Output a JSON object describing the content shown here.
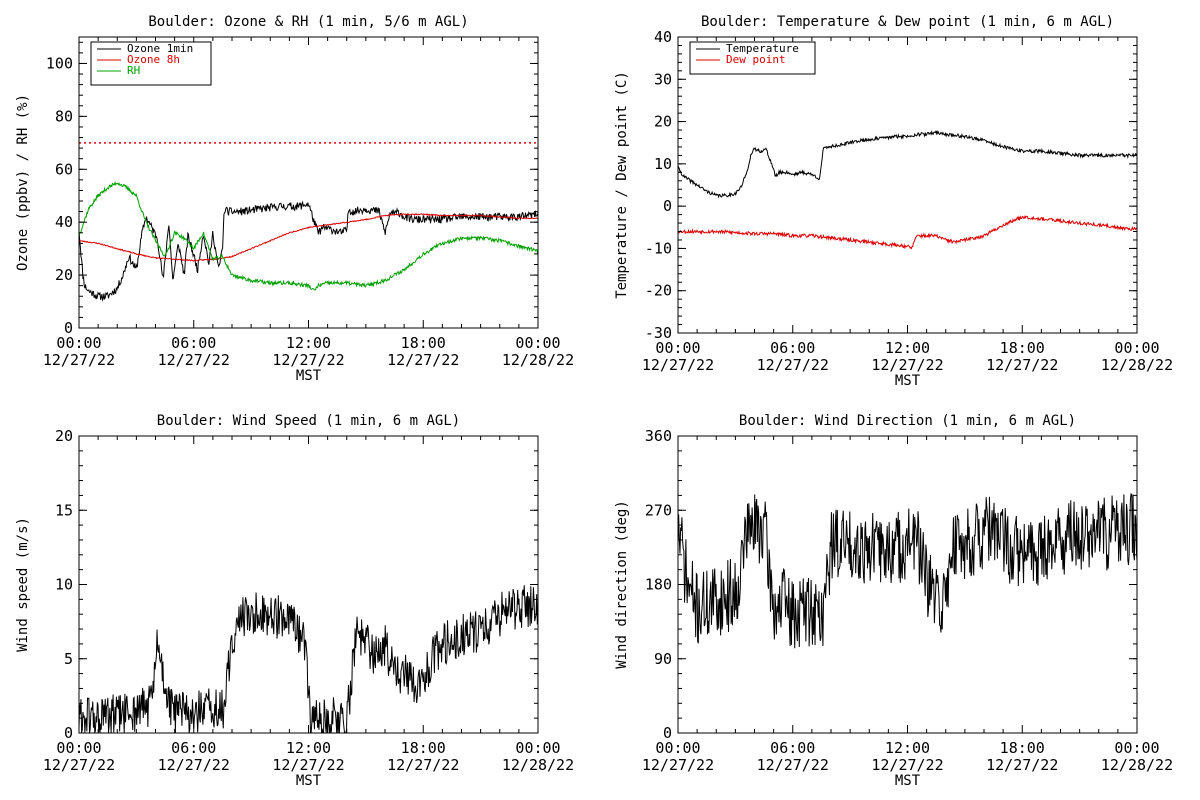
{
  "chart_data": [
    {
      "id": "ozone",
      "type": "line",
      "title": "Boulder: Ozone & RH (1 min, 5/6 m AGL)",
      "xlabel": "MST",
      "ylabel": "Ozone (ppbv) / RH (%)",
      "xlim": [
        0,
        24
      ],
      "ylim": [
        0,
        110
      ],
      "yticks": [
        0,
        20,
        40,
        60,
        80,
        100
      ],
      "xtick_labels": [
        {
          "time": "00:00",
          "date": "12/27/22"
        },
        {
          "time": "06:00",
          "date": "12/27/22"
        },
        {
          "time": "12:00",
          "date": "12/27/22"
        },
        {
          "time": "18:00",
          "date": "12/27/22"
        },
        {
          "time": "00:00",
          "date": "12/28/22"
        }
      ],
      "legend": {
        "position": "top-left"
      },
      "reference_lines": [
        {
          "y": 70,
          "color": "#dd0000",
          "style": "dotted"
        }
      ],
      "series": [
        {
          "name": "Ozone 1min",
          "color": "#000000",
          "noise": 1.5,
          "seed": 11,
          "x": [
            0,
            0.2,
            0.3,
            0.5,
            1.0,
            1.5,
            2.0,
            2.3,
            2.6,
            3.0,
            3.3,
            3.5,
            3.8,
            4.1,
            4.4,
            4.7,
            4.9,
            5.2,
            5.5,
            5.7,
            5.9,
            6.2,
            6.5,
            6.8,
            7.0,
            7.3,
            7.5,
            7.6,
            7.8,
            8.5,
            9.5,
            10.5,
            11.5,
            12.0,
            12.3,
            12.5,
            12.8,
            13.3,
            13.7,
            14.0,
            14.1,
            14.3,
            15.0,
            15.7,
            16.0,
            16.3,
            16.5,
            16.7,
            17.0,
            17.5,
            18.0,
            19.0,
            20.0,
            21.0,
            22.0,
            23.0,
            24.0
          ],
          "y": [
            37,
            20,
            16,
            14,
            12,
            12,
            15,
            20,
            27,
            22,
            36,
            42,
            38,
            34,
            18,
            40,
            18,
            32,
            20,
            35,
            30,
            22,
            36,
            24,
            36,
            22,
            30,
            45,
            44,
            44,
            45,
            46,
            46,
            47,
            40,
            36,
            38,
            37,
            36,
            37,
            45,
            44,
            45,
            44,
            36,
            44,
            43,
            44,
            42,
            41,
            41,
            41,
            42,
            42,
            42,
            42,
            43
          ]
        },
        {
          "name": "Ozone 8h",
          "color": "#dd0000",
          "noise": 0.2,
          "seed": 23,
          "x": [
            0,
            1,
            2,
            3,
            4,
            5,
            6,
            7,
            8,
            9,
            10,
            11,
            12,
            13,
            14,
            15,
            16,
            17,
            18,
            19,
            20,
            21,
            22,
            23,
            24
          ],
          "y": [
            33,
            32,
            30,
            28,
            26.5,
            26,
            25.5,
            26,
            27,
            30,
            33,
            36,
            38,
            39,
            40,
            41,
            42.5,
            43,
            43,
            42.5,
            42.5,
            42.5,
            42,
            41.5,
            41.5
          ]
        },
        {
          "name": "RH",
          "color": "#00a000",
          "noise": 0.7,
          "seed": 37,
          "x": [
            0,
            0.5,
            1.0,
            1.5,
            2.0,
            2.5,
            3.0,
            3.5,
            4.0,
            4.5,
            5.0,
            5.5,
            6.0,
            6.5,
            7.0,
            7.5,
            8.0,
            9.0,
            10.0,
            11.0,
            12.0,
            12.3,
            12.5,
            13.0,
            14.0,
            15.0,
            16.0,
            16.5,
            17.0,
            18.0,
            19.0,
            20.0,
            21.0,
            22.0,
            23.0,
            24.0
          ],
          "y": [
            35,
            45,
            50,
            53,
            55,
            53,
            50,
            40,
            33,
            27,
            36,
            34,
            30,
            36,
            26,
            27,
            20,
            18,
            17,
            17,
            16,
            14,
            16,
            17,
            17,
            16,
            18,
            20,
            22,
            28,
            32,
            34,
            34,
            33,
            31,
            29
          ]
        }
      ]
    },
    {
      "id": "temperature",
      "type": "line",
      "title": "Boulder: Temperature & Dew point (1 min, 6 m AGL)",
      "xlabel": "MST",
      "ylabel": "Temperature / Dew point (C)",
      "xlim": [
        0,
        24
      ],
      "ylim": [
        -30,
        40
      ],
      "yticks": [
        -30,
        -20,
        -10,
        0,
        10,
        20,
        30,
        40
      ],
      "xtick_labels": [
        {
          "time": "00:00",
          "date": "12/27/22"
        },
        {
          "time": "06:00",
          "date": "12/27/22"
        },
        {
          "time": "12:00",
          "date": "12/27/22"
        },
        {
          "time": "18:00",
          "date": "12/27/22"
        },
        {
          "time": "00:00",
          "date": "12/28/22"
        }
      ],
      "legend": {
        "position": "top-left"
      },
      "series": [
        {
          "name": "Temperature",
          "color": "#000000",
          "noise": 0.4,
          "seed": 41,
          "x": [
            0,
            0.3,
            1.0,
            1.5,
            2.0,
            2.5,
            3.0,
            3.3,
            3.6,
            3.8,
            4.0,
            4.3,
            4.6,
            4.9,
            5.1,
            5.3,
            5.7,
            6.0,
            6.5,
            7.0,
            7.4,
            7.6,
            7.8,
            8.5,
            9.5,
            10.5,
            11.5,
            12.0,
            12.5,
            13.0,
            13.5,
            14.0,
            15.0,
            16.0,
            17.0,
            18.0,
            19.0,
            20.0,
            21.0,
            22.0,
            23.0,
            24.0
          ],
          "y": [
            9,
            7,
            5,
            3.5,
            2.5,
            2.5,
            3,
            4.5,
            8,
            12,
            13.5,
            13,
            13.5,
            10,
            7,
            8,
            8,
            7.5,
            8,
            7.5,
            6.5,
            13.5,
            14,
            14.5,
            15.5,
            16,
            16.5,
            16.5,
            17,
            17,
            17.5,
            17,
            16.5,
            15.5,
            14,
            13,
            13,
            12.5,
            12,
            12,
            12,
            12
          ]
        },
        {
          "name": "Dew point",
          "color": "#dd0000",
          "noise": 0.4,
          "seed": 53,
          "x": [
            0,
            2,
            4,
            5,
            6,
            7,
            8,
            9,
            10,
            11,
            12,
            12.2,
            12.5,
            13.0,
            13.5,
            14.0,
            14.5,
            15.0,
            16.0,
            17.0,
            18.0,
            19.0,
            20.0,
            21.0,
            22.0,
            23.0,
            24.0
          ],
          "y": [
            -6,
            -6,
            -6.5,
            -6.5,
            -7,
            -7,
            -7.5,
            -8,
            -8.5,
            -9,
            -9.5,
            -10,
            -7,
            -7,
            -7,
            -8,
            -8.5,
            -8,
            -7,
            -4.5,
            -2.5,
            -3,
            -3.5,
            -4,
            -4.5,
            -5,
            -5.5
          ]
        }
      ]
    },
    {
      "id": "wind-speed",
      "type": "line",
      "title": "Boulder: Wind Speed (1 min, 6 m AGL)",
      "xlabel": "MST",
      "ylabel": "Wind speed (m/s)",
      "xlim": [
        0,
        24
      ],
      "ylim": [
        0,
        20
      ],
      "yticks": [
        0,
        5,
        10,
        15,
        20
      ],
      "xtick_labels": [
        {
          "time": "00:00",
          "date": "12/27/22"
        },
        {
          "time": "06:00",
          "date": "12/27/22"
        },
        {
          "time": "12:00",
          "date": "12/27/22"
        },
        {
          "time": "18:00",
          "date": "12/27/22"
        },
        {
          "time": "00:00",
          "date": "12/28/22"
        }
      ],
      "series": [
        {
          "name": "",
          "color": "#000000",
          "noise": 1.5,
          "seed": 61,
          "x": [
            0,
            1,
            2,
            3,
            3.8,
            4.1,
            4.4,
            4.8,
            5.2,
            5.8,
            6.5,
            7.2,
            7.6,
            7.8,
            8.2,
            9.0,
            10.0,
            11.0,
            11.8,
            12.1,
            12.5,
            13.0,
            13.5,
            14.0,
            14.2,
            14.5,
            15.0,
            15.5,
            16.0,
            16.5,
            17.0,
            17.5,
            18.0,
            18.5,
            19.0,
            20.0,
            21.0,
            22.0,
            23.0,
            24.0
          ],
          "y": [
            1,
            1,
            1.2,
            1.5,
            2,
            6,
            4,
            1.5,
            1.5,
            1.2,
            1.5,
            1.5,
            1.5,
            4,
            7.5,
            8,
            8,
            7.5,
            6,
            1,
            1,
            1,
            1,
            0.8,
            3,
            7,
            6,
            5,
            6,
            4,
            4,
            3,
            4,
            5,
            6,
            6.5,
            7,
            8,
            8.5,
            8.5
          ]
        }
      ]
    },
    {
      "id": "wind-direction",
      "type": "line",
      "title": "Boulder: Wind Direction (1 min, 6 m AGL)",
      "xlabel": "MST",
      "ylabel": "Wind direction (deg)",
      "xlim": [
        0,
        24
      ],
      "ylim": [
        0,
        360
      ],
      "yticks": [
        0,
        90,
        180,
        270,
        360
      ],
      "xtick_labels": [
        {
          "time": "00:00",
          "date": "12/27/22"
        },
        {
          "time": "06:00",
          "date": "12/27/22"
        },
        {
          "time": "12:00",
          "date": "12/27/22"
        },
        {
          "time": "18:00",
          "date": "12/27/22"
        },
        {
          "time": "00:00",
          "date": "12/28/22"
        }
      ],
      "series": [
        {
          "name": "",
          "color": "#000000",
          "noise": 45,
          "seed": 71,
          "x": [
            0,
            0.5,
            1,
            2,
            3,
            3.3,
            3.5,
            4,
            4.5,
            5,
            5.5,
            6,
            6.5,
            7,
            7.5,
            7.8,
            8,
            8.5,
            9,
            10,
            11,
            12,
            12.5,
            13,
            13.5,
            14,
            14.3,
            15,
            16,
            16.5,
            17,
            18,
            19,
            20,
            21,
            22,
            23,
            24
          ],
          "y": [
            250,
            180,
            150,
            160,
            170,
            200,
            240,
            250,
            250,
            150,
            160,
            140,
            150,
            150,
            140,
            180,
            230,
            230,
            230,
            225,
            220,
            230,
            235,
            180,
            160,
            160,
            230,
            230,
            240,
            245,
            230,
            215,
            225,
            235,
            240,
            240,
            245,
            245
          ]
        }
      ]
    }
  ]
}
